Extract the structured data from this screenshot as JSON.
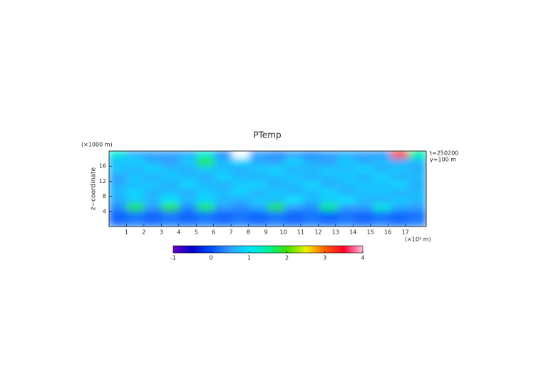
{
  "chart_data": {
    "type": "heatmap",
    "title": "PTemp",
    "y_unit_label": "(×1000 m)",
    "x_unit_label": "(×10⁴ m)",
    "ylabel": "z−coordinate",
    "annotations": [
      "t=250200",
      "y=100 m"
    ],
    "xlim": [
      0,
      18.2
    ],
    "ylim": [
      0,
      20
    ],
    "xticks": [
      1,
      2,
      3,
      4,
      5,
      6,
      7,
      8,
      9,
      10,
      11,
      12,
      13,
      14,
      15,
      16,
      17
    ],
    "yticks": [
      4,
      8,
      12,
      16
    ],
    "z": [
      [
        1.2,
        0.6,
        0.5,
        0.5,
        0.6,
        1.2,
        0.4,
        4.2,
        0.5,
        0.4,
        0.5,
        0.4,
        0.5,
        0.6,
        0.5,
        0.5,
        3.2,
        1.5
      ],
      [
        0.7,
        0.9,
        0.6,
        0.5,
        0.8,
        1.8,
        0.7,
        0.9,
        0.6,
        0.5,
        0.9,
        0.6,
        0.5,
        0.8,
        0.6,
        0.7,
        0.6,
        0.7
      ],
      [
        0.8,
        0.6,
        0.9,
        0.7,
        0.6,
        0.8,
        0.7,
        0.6,
        0.8,
        0.9,
        0.6,
        0.7,
        0.8,
        0.7,
        0.9,
        0.6,
        0.8,
        0.6
      ],
      [
        0.5,
        0.8,
        0.6,
        0.8,
        0.7,
        0.6,
        0.9,
        0.7,
        0.6,
        0.7,
        0.8,
        0.6,
        0.7,
        0.8,
        0.6,
        0.9,
        0.6,
        0.7
      ],
      [
        0.6,
        0.7,
        0.8,
        0.6,
        0.9,
        0.7,
        0.6,
        0.8,
        0.9,
        0.6,
        0.7,
        0.9,
        0.6,
        0.7,
        0.8,
        0.7,
        0.9,
        0.6
      ],
      [
        0.7,
        0.9,
        0.6,
        0.7,
        0.6,
        0.8,
        0.7,
        0.9,
        0.6,
        0.8,
        0.6,
        0.7,
        0.9,
        0.6,
        0.7,
        0.8,
        0.6,
        0.7
      ],
      [
        0.6,
        0.8,
        0.7,
        1.0,
        0.7,
        0.9,
        0.7,
        0.6,
        0.8,
        0.7,
        1.0,
        0.7,
        0.8,
        1.0,
        0.7,
        0.6,
        0.8,
        0.7
      ],
      [
        0.4,
        1.8,
        0.5,
        1.9,
        0.4,
        1.7,
        0.5,
        0.4,
        0.6,
        1.8,
        0.5,
        0.4,
        1.6,
        0.5,
        0.5,
        1.2,
        0.6,
        0.5
      ],
      [
        0.1,
        0.2,
        0.1,
        0.2,
        0.1,
        0.2,
        0.1,
        0.2,
        0.1,
        0.2,
        0.1,
        0.2,
        0.1,
        0.2,
        0.1,
        0.2,
        0.1,
        0.2
      ],
      [
        0.2,
        0.3,
        0.2,
        0.3,
        0.2,
        0.3,
        0.2,
        0.3,
        0.2,
        0.3,
        0.2,
        0.3,
        0.2,
        0.3,
        0.2,
        0.3,
        0.2,
        0.3
      ]
    ],
    "colors": [
      "#6a00c8",
      "#0000c8",
      "#0050ff",
      "#30a0ff",
      "#00e5ff",
      "#00f0a0",
      "#40e000",
      "#f0f000",
      "#ff6000",
      "#ff0030",
      "#ffc0e0"
    ],
    "clim": [
      -1,
      4
    ],
    "cticks": [
      -1,
      0,
      1,
      2,
      3,
      4
    ]
  }
}
